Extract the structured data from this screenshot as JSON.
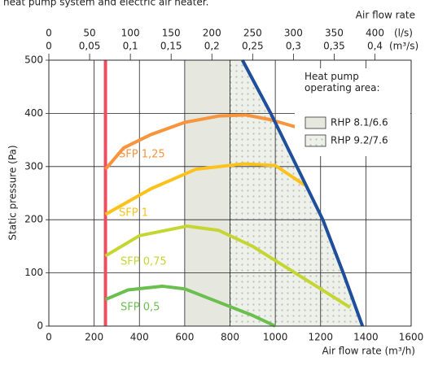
{
  "chart_data": {
    "type": "line",
    "caption": "heat pump system and electric air heater.",
    "xlabel": "Air flow rate (m³/h)",
    "ylabel": "Static pressure (Pa)",
    "top_xlabel": "Air flow rate",
    "xlim": [
      0,
      1600
    ],
    "xticks": [
      0,
      200,
      400,
      600,
      800,
      1000,
      1200,
      1400,
      1600
    ],
    "ylim": [
      0,
      500
    ],
    "yticks": [
      0,
      100,
      200,
      300,
      400,
      500
    ],
    "x2lim": [
      0,
      444.444
    ],
    "x2unit": "(l/s)",
    "x2ticks": [
      0,
      50,
      100,
      150,
      200,
      250,
      300,
      350,
      400
    ],
    "x3lim": [
      0,
      0.444444
    ],
    "x3unit": "(m³/s)",
    "x3ticks": [
      0,
      {
        "value": 0.05,
        "label": "0,05"
      },
      {
        "value": 0.1,
        "label": "0,1"
      },
      {
        "value": 0.15,
        "label": "0,15"
      },
      {
        "value": 0.2,
        "label": "0,2"
      },
      {
        "value": 0.25,
        "label": "0,25"
      },
      {
        "value": 0.3,
        "label": "0,3"
      },
      {
        "value": 0.35,
        "label": "0,35"
      },
      {
        "value": 0.4,
        "label": "0,4"
      }
    ],
    "grid": true,
    "series": [
      {
        "color": "#ee4c5f",
        "x": [
          250,
          250
        ],
        "values": [
          0,
          500
        ]
      },
      {
        "name": "SFP 1,25",
        "color": "#f7943c",
        "x": [
          250,
          330,
          450,
          600,
          750,
          870,
          980,
          1110
        ],
        "values": [
          295,
          335,
          360,
          383,
          395,
          397,
          388,
          372
        ]
      },
      {
        "name": "SFP 1",
        "color": "#fcc21c",
        "x": [
          250,
          450,
          650,
          860,
          1000,
          1130
        ],
        "values": [
          210,
          258,
          295,
          305,
          302,
          265
        ]
      },
      {
        "name": "SFP 0,75",
        "color": "#c5d633",
        "x": [
          250,
          400,
          610,
          750,
          900,
          1050,
          1200,
          1330
        ],
        "values": [
          132,
          170,
          188,
          180,
          150,
          110,
          70,
          35
        ]
      },
      {
        "name": "SFP 0,5",
        "color": "#6bbf4e",
        "x": [
          250,
          350,
          500,
          600,
          750,
          900,
          1000
        ],
        "values": [
          50,
          68,
          75,
          70,
          45,
          20,
          0
        ]
      },
      {
        "color": "#1f4e9b",
        "x": [
          855,
          980,
          1095,
          1210,
          1300,
          1385
        ],
        "values": [
          500,
          400,
          300,
          200,
          100,
          0
        ]
      }
    ],
    "legend_title": "Heat pump operating area:",
    "areas": [
      {
        "name": "RHP 8.1/6.6",
        "color": "#e6e8e0",
        "x": [
          600,
          800
        ]
      },
      {
        "name": "RHP 9.2/7.6",
        "color": "#eef0ea",
        "pattern": "dots",
        "x": [
          800
        ]
      }
    ]
  }
}
